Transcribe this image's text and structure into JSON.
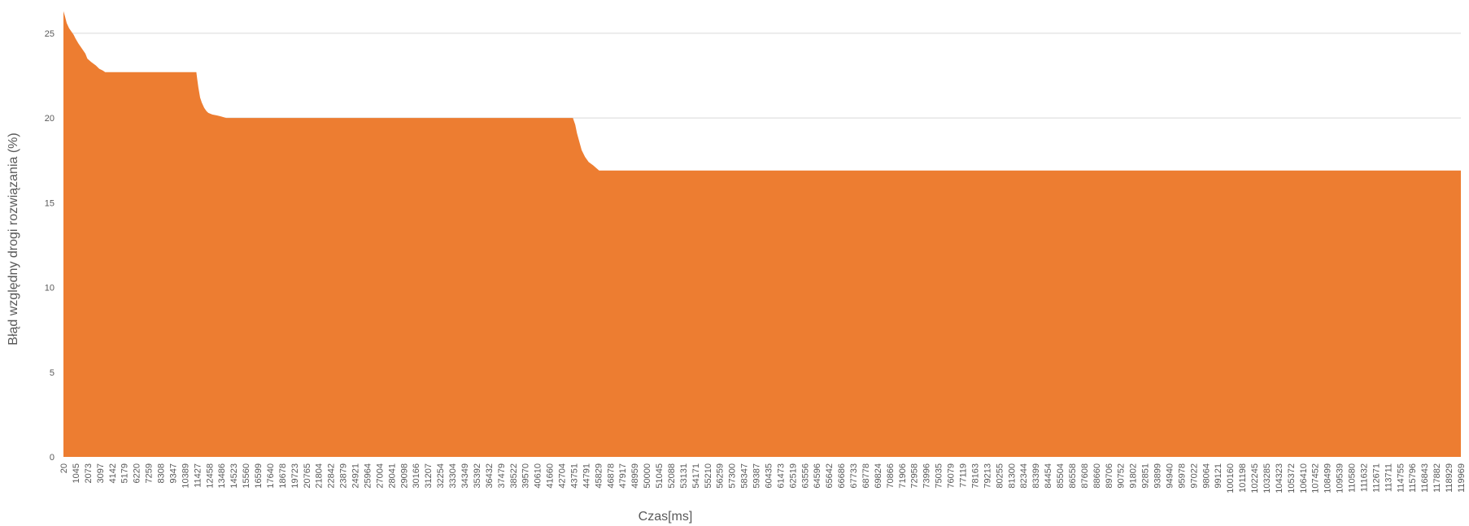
{
  "chart_data": {
    "type": "area",
    "title": "",
    "xlabel": "Czas[ms]",
    "ylabel": "Błąd względny drogi rozwiązania  (%)",
    "ylim": [
      0,
      26
    ],
    "yticks": [
      0,
      5,
      10,
      15,
      20,
      25
    ],
    "grid": true,
    "legend": "none",
    "color": "#ED7D31",
    "gridColor": "#D9D9D9",
    "categories": [
      "20",
      "1045",
      "2073",
      "3097",
      "4142",
      "5179",
      "6220",
      "7259",
      "8308",
      "9347",
      "10389",
      "11427",
      "12458",
      "13486",
      "14523",
      "15560",
      "16599",
      "17640",
      "18678",
      "19723",
      "20765",
      "21804",
      "22842",
      "23879",
      "24921",
      "25964",
      "27004",
      "28041",
      "29098",
      "30166",
      "31207",
      "32254",
      "33304",
      "34349",
      "35392",
      "36432",
      "37479",
      "38522",
      "39570",
      "40610",
      "41660",
      "42704",
      "43751",
      "44791",
      "45829",
      "46878",
      "47917",
      "48959",
      "50000",
      "51045",
      "52088",
      "53131",
      "54171",
      "55210",
      "56259",
      "57300",
      "58347",
      "59387",
      "60435",
      "61473",
      "62519",
      "63556",
      "64596",
      "65642",
      "66686",
      "67733",
      "68778",
      "69824",
      "70866",
      "71906",
      "72958",
      "73996",
      "75035",
      "76079",
      "77119",
      "78163",
      "79213",
      "80255",
      "81300",
      "82344",
      "83399",
      "84454",
      "85504",
      "86558",
      "87608",
      "88660",
      "89706",
      "90752",
      "91802",
      "92851",
      "93899",
      "94940",
      "95978",
      "97022",
      "98064",
      "99121",
      "100160",
      "101198",
      "102245",
      "103285",
      "104323",
      "105372",
      "106410",
      "107452",
      "108499",
      "109539",
      "110580",
      "111632",
      "112671",
      "113711",
      "114755",
      "115796",
      "116843",
      "117882",
      "118929",
      "119969"
    ],
    "series": [
      {
        "x": [
          20,
          150,
          300,
          500,
          700,
          900,
          1045,
          1300,
          1600,
          1900,
          2073,
          2400,
          2800,
          3097,
          3400,
          3600,
          11427,
          11500,
          11600,
          11750,
          11900,
          12100,
          12300,
          12458,
          12800,
          13200,
          13486,
          14000,
          43751,
          43950,
          44100,
          44300,
          44500,
          44791,
          45100,
          45500,
          45829,
          46000,
          119969
        ],
        "values": [
          26.3,
          26.0,
          25.6,
          25.3,
          25.1,
          24.9,
          24.7,
          24.4,
          24.1,
          23.8,
          23.5,
          23.3,
          23.1,
          22.9,
          22.8,
          22.7,
          22.7,
          22.3,
          21.8,
          21.2,
          20.9,
          20.6,
          20.4,
          20.3,
          20.2,
          20.15,
          20.1,
          20.0,
          20.0,
          19.6,
          19.1,
          18.6,
          18.1,
          17.7,
          17.4,
          17.2,
          17.0,
          16.9,
          16.9
        ]
      }
    ]
  }
}
